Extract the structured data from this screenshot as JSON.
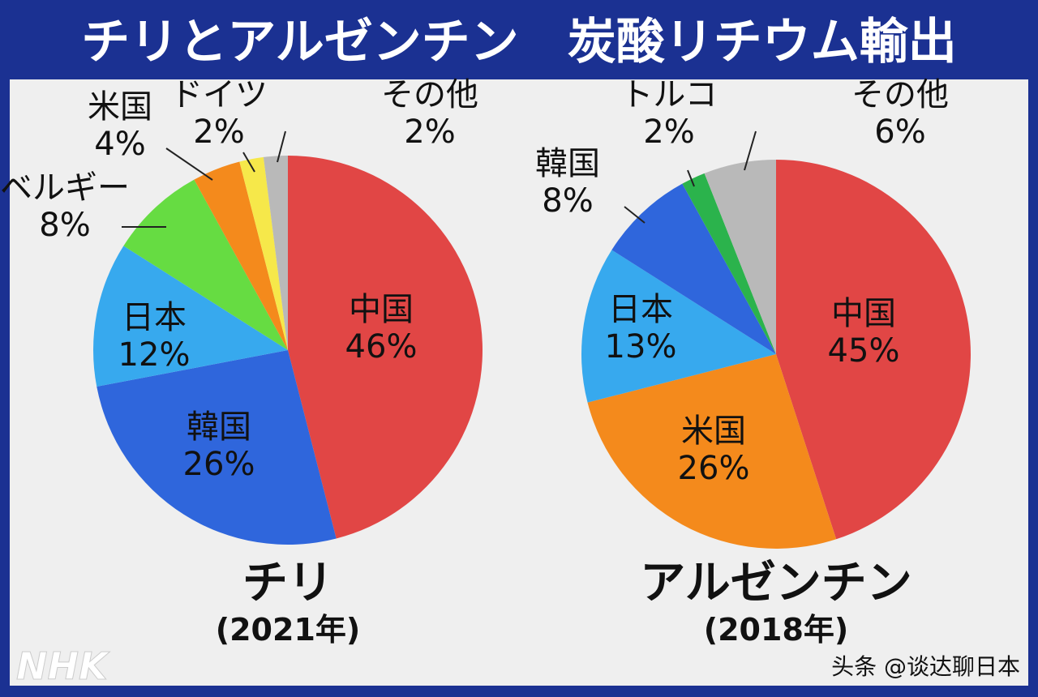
{
  "title": "チリとアルゼンチン　炭酸リチウム輸出",
  "logo": "NHK",
  "watermark": "头条 @谈达聊日本",
  "chart_data": [
    {
      "type": "pie",
      "caption": "チリ",
      "year": "(2021年)",
      "categories": [
        "中国",
        "韓国",
        "日本",
        "ベルギー",
        "米国",
        "ドイツ",
        "その他"
      ],
      "values": [
        46,
        26,
        12,
        8,
        4,
        2,
        2
      ],
      "labels": [
        "46%",
        "26%",
        "12%",
        "8%",
        "4%",
        "2%",
        "2%"
      ],
      "colors": [
        "#e14645",
        "#2f66dc",
        "#37a9ee",
        "#66dc42",
        "#f48a1c",
        "#f6e84a",
        "#b9b9b9"
      ],
      "start": "12 o'clock, clockwise"
    },
    {
      "type": "pie",
      "caption": "アルゼンチン",
      "year": "(2018年)",
      "categories": [
        "中国",
        "米国",
        "日本",
        "韓国",
        "トルコ",
        "その他"
      ],
      "values": [
        45,
        26,
        13,
        8,
        2,
        6
      ],
      "labels": [
        "45%",
        "26%",
        "13%",
        "8%",
        "2%",
        "6%"
      ],
      "colors": [
        "#e14645",
        "#f48a1c",
        "#37a9ee",
        "#2f66dc",
        "#2bb34c",
        "#b9b9b9"
      ],
      "start": "12 o'clock, clockwise"
    }
  ]
}
